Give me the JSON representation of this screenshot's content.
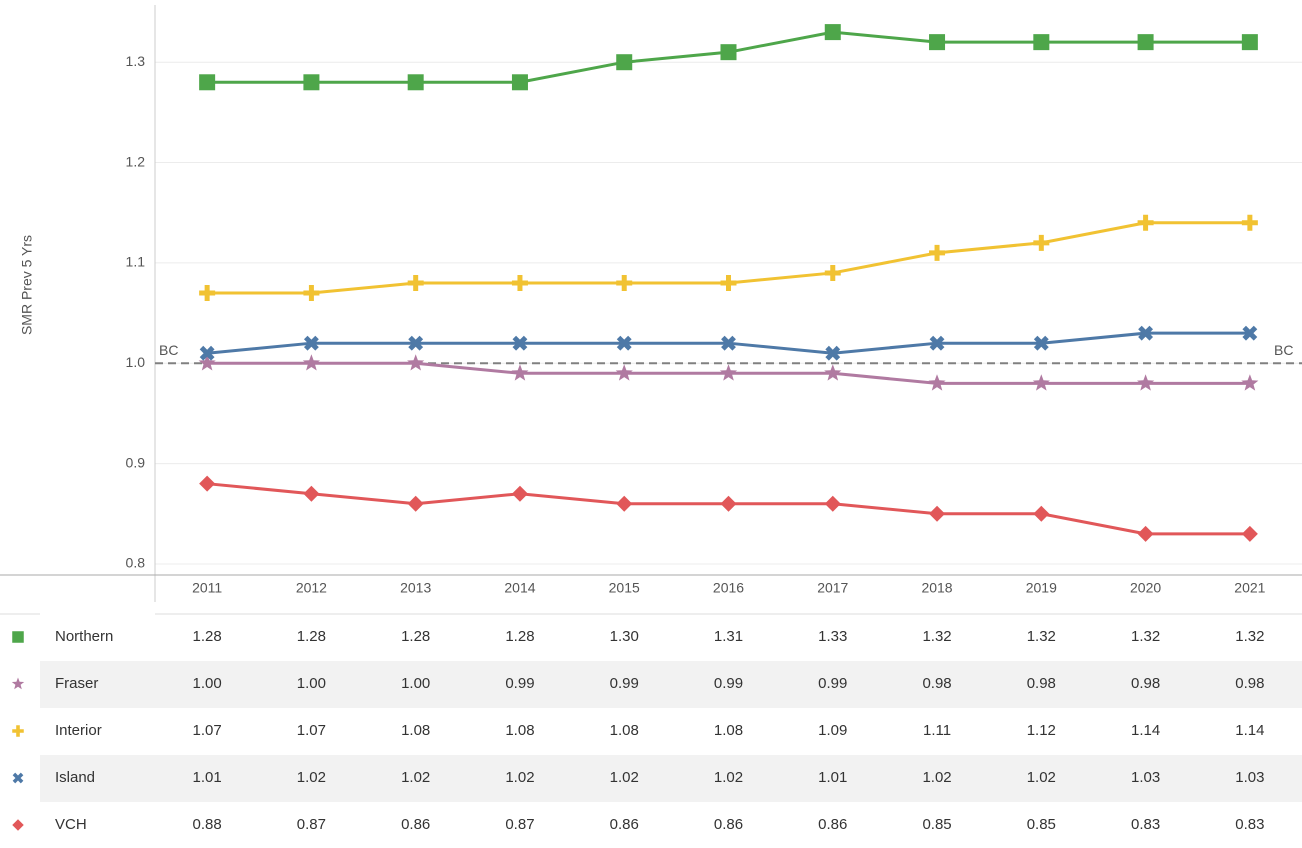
{
  "chart_data": {
    "type": "line",
    "y_label": "SMR Prev 5 Yrs",
    "categories": [
      "2011",
      "2012",
      "2013",
      "2014",
      "2015",
      "2016",
      "2017",
      "2018",
      "2019",
      "2020",
      "2021"
    ],
    "ylim": [
      0.79,
      1.36
    ],
    "yticks": [
      0.8,
      0.9,
      {
        "value": 1,
        "label": "1.0"
      },
      1.1,
      1.2,
      1.3
    ],
    "grid": true,
    "reference_line": {
      "value": 1,
      "label": "BC",
      "color": "#808080"
    },
    "series": [
      {
        "name": "Northern",
        "color": "#4ea64a",
        "marker": "square",
        "values": [
          1.28,
          1.28,
          1.28,
          1.28,
          1.3,
          1.31,
          1.33,
          1.32,
          1.32,
          1.32,
          1.32
        ],
        "value_labels": [
          "1.28",
          "1.28",
          "1.28",
          "1.28",
          "1.30",
          "1.31",
          "1.33",
          "1.32",
          "1.32",
          "1.32",
          "1.32"
        ]
      },
      {
        "name": "Fraser",
        "color": "#b07aa1",
        "marker": "star",
        "values": [
          1,
          1,
          1,
          0.99,
          0.99,
          0.99,
          0.99,
          0.98,
          0.98,
          0.98,
          0.98
        ],
        "value_labels": [
          "1.00",
          "1.00",
          "1.00",
          "0.99",
          "0.99",
          "0.99",
          "0.99",
          "0.98",
          "0.98",
          "0.98",
          "0.98"
        ]
      },
      {
        "name": "Interior",
        "color": "#f1c232",
        "marker": "plus",
        "values": [
          1.07,
          1.07,
          1.08,
          1.08,
          1.08,
          1.08,
          1.09,
          1.11,
          1.12,
          1.14,
          1.14
        ],
        "value_labels": [
          "1.07",
          "1.07",
          "1.08",
          "1.08",
          "1.08",
          "1.08",
          "1.09",
          "1.11",
          "1.12",
          "1.14",
          "1.14"
        ]
      },
      {
        "name": "Island",
        "color": "#4e79a7",
        "marker": "cross",
        "values": [
          1.01,
          1.02,
          1.02,
          1.02,
          1.02,
          1.02,
          1.01,
          1.02,
          1.02,
          1.03,
          1.03
        ],
        "value_labels": [
          "1.01",
          "1.02",
          "1.02",
          "1.02",
          "1.02",
          "1.02",
          "1.01",
          "1.02",
          "1.02",
          "1.03",
          "1.03"
        ]
      },
      {
        "name": "VCH",
        "color": "#e15759",
        "marker": "diamond",
        "values": [
          0.88,
          0.87,
          0.86,
          0.87,
          0.86,
          0.86,
          0.86,
          0.85,
          0.85,
          0.83,
          0.83
        ],
        "value_labels": [
          "0.88",
          "0.87",
          "0.86",
          "0.87",
          "0.86",
          "0.86",
          "0.86",
          "0.85",
          "0.85",
          "0.83",
          "0.83"
        ]
      }
    ]
  }
}
